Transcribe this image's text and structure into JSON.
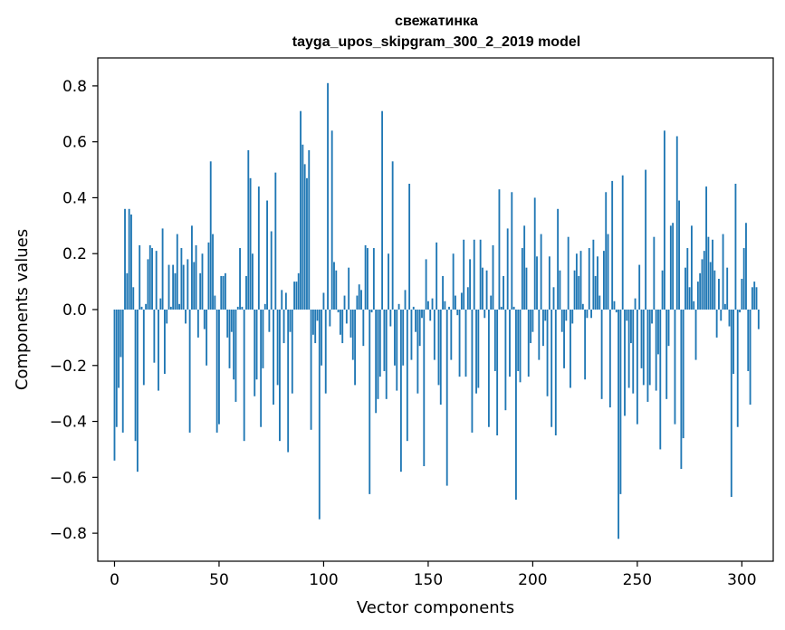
{
  "chart_data": {
    "type": "bar",
    "title_line1": "свежатинка",
    "title_line2": "tayga_upos_skipgram_300_2_2019 model",
    "xlabel": "Vector components",
    "ylabel": "Components values",
    "xlim": [
      -8,
      315
    ],
    "ylim": [
      -0.9,
      0.9
    ],
    "xticks": [
      0,
      50,
      100,
      150,
      200,
      250,
      300
    ],
    "xtick_labels": [
      "0",
      "50",
      "100",
      "150",
      "200",
      "250",
      "300"
    ],
    "yticks": [
      0.8,
      0.6,
      0.4,
      0.2,
      0.0,
      -0.2,
      -0.4,
      -0.6,
      -0.8
    ],
    "ytick_labels": [
      "0.8",
      "0.6",
      "0.4",
      "0.2",
      "0.0",
      "−0.2",
      "−0.4",
      "−0.6",
      "−0.8"
    ],
    "bar_color": "#1f77b4",
    "values": [
      -0.54,
      -0.42,
      -0.28,
      -0.17,
      -0.44,
      0.36,
      0.13,
      0.36,
      0.34,
      0.08,
      -0.47,
      -0.58,
      0.23,
      0.01,
      -0.27,
      0.02,
      0.18,
      0.23,
      0.22,
      -0.19,
      0.21,
      -0.29,
      0.04,
      0.29,
      -0.23,
      -0.05,
      0.16,
      0.01,
      0.16,
      0.13,
      0.27,
      0.02,
      0.22,
      0.16,
      -0.05,
      0.18,
      -0.44,
      0.3,
      0.17,
      0.23,
      -0.1,
      0.13,
      0.2,
      -0.07,
      -0.2,
      0.24,
      0.53,
      0.27,
      0.05,
      -0.44,
      -0.41,
      0.12,
      0.12,
      0.13,
      -0.1,
      -0.21,
      -0.08,
      -0.25,
      -0.33,
      0.01,
      0.22,
      0.01,
      -0.47,
      0.12,
      0.57,
      0.47,
      0.2,
      -0.31,
      -0.25,
      0.44,
      -0.42,
      -0.21,
      0.02,
      0.39,
      -0.08,
      0.28,
      -0.34,
      0.49,
      -0.27,
      -0.47,
      0.07,
      -0.12,
      0.06,
      -0.51,
      -0.08,
      -0.3,
      0.1,
      0.1,
      0.13,
      0.71,
      0.59,
      0.52,
      0.47,
      0.57,
      -0.43,
      -0.09,
      -0.12,
      -0.04,
      -0.75,
      -0.2,
      0.06,
      -0.3,
      0.81,
      -0.06,
      0.64,
      0.17,
      0.14,
      -0.01,
      -0.09,
      -0.12,
      0.05,
      -0.05,
      0.15,
      -0.1,
      -0.18,
      -0.27,
      0.05,
      0.09,
      0.07,
      -0.13,
      0.23,
      0.22,
      -0.66,
      -0.01,
      0.22,
      -0.37,
      -0.32,
      -0.24,
      0.71,
      -0.22,
      -0.32,
      0.2,
      -0.06,
      0.53,
      -0.2,
      -0.29,
      0.02,
      -0.58,
      -0.2,
      0.07,
      -0.47,
      0.45,
      -0.18,
      0.01,
      -0.08,
      -0.3,
      -0.13,
      -0.03,
      -0.56,
      0.18,
      0.03,
      -0.04,
      0.04,
      -0.18,
      0.24,
      -0.27,
      -0.34,
      0.12,
      0.03,
      -0.63,
      0.01,
      -0.18,
      0.2,
      0.05,
      -0.02,
      -0.24,
      0.06,
      0.25,
      -0.24,
      0.08,
      0.18,
      -0.44,
      0.25,
      -0.3,
      -0.28,
      0.25,
      0.15,
      -0.03,
      0.14,
      -0.42,
      0.05,
      0.23,
      -0.22,
      -0.45,
      0.43,
      0.01,
      0.12,
      -0.36,
      0.29,
      -0.24,
      0.42,
      0.01,
      -0.68,
      -0.22,
      -0.26,
      0.22,
      0.3,
      0.15,
      -0.24,
      -0.12,
      -0.08,
      0.4,
      0.19,
      -0.18,
      0.27,
      -0.13,
      -0.04,
      -0.31,
      0.19,
      -0.42,
      0.08,
      -0.45,
      0.36,
      0.14,
      -0.08,
      -0.21,
      -0.04,
      0.26,
      -0.28,
      -0.05,
      0.14,
      0.2,
      0.12,
      0.21,
      0.02,
      -0.25,
      -0.03,
      0.22,
      -0.03,
      0.25,
      0.12,
      0.19,
      0.05,
      -0.32,
      0.21,
      0.42,
      0.27,
      -0.35,
      0.46,
      0.03,
      -0.01,
      -0.82,
      -0.66,
      0.48,
      -0.38,
      -0.04,
      -0.28,
      -0.12,
      -0.3,
      0.04,
      -0.41,
      0.16,
      -0.21,
      -0.27,
      0.5,
      -0.33,
      -0.27,
      -0.05,
      0.26,
      -0.29,
      -0.16,
      -0.5,
      0.14,
      0.64,
      -0.32,
      -0.13,
      0.3,
      0.31,
      -0.41,
      0.62,
      0.39,
      -0.57,
      -0.46,
      0.15,
      0.22,
      0.08,
      0.3,
      0.03,
      -0.18,
      0.1,
      0.13,
      0.18,
      0.21,
      0.44,
      0.26,
      0.17,
      0.25,
      0.14,
      -0.1,
      0.11,
      -0.04,
      0.27,
      0.02,
      0.15,
      -0.06,
      -0.67,
      -0.23,
      0.45,
      -0.42,
      -0.01,
      0.11,
      0.22,
      0.31,
      -0.22,
      -0.34,
      0.08,
      0.1,
      0.08,
      -0.07
    ]
  }
}
